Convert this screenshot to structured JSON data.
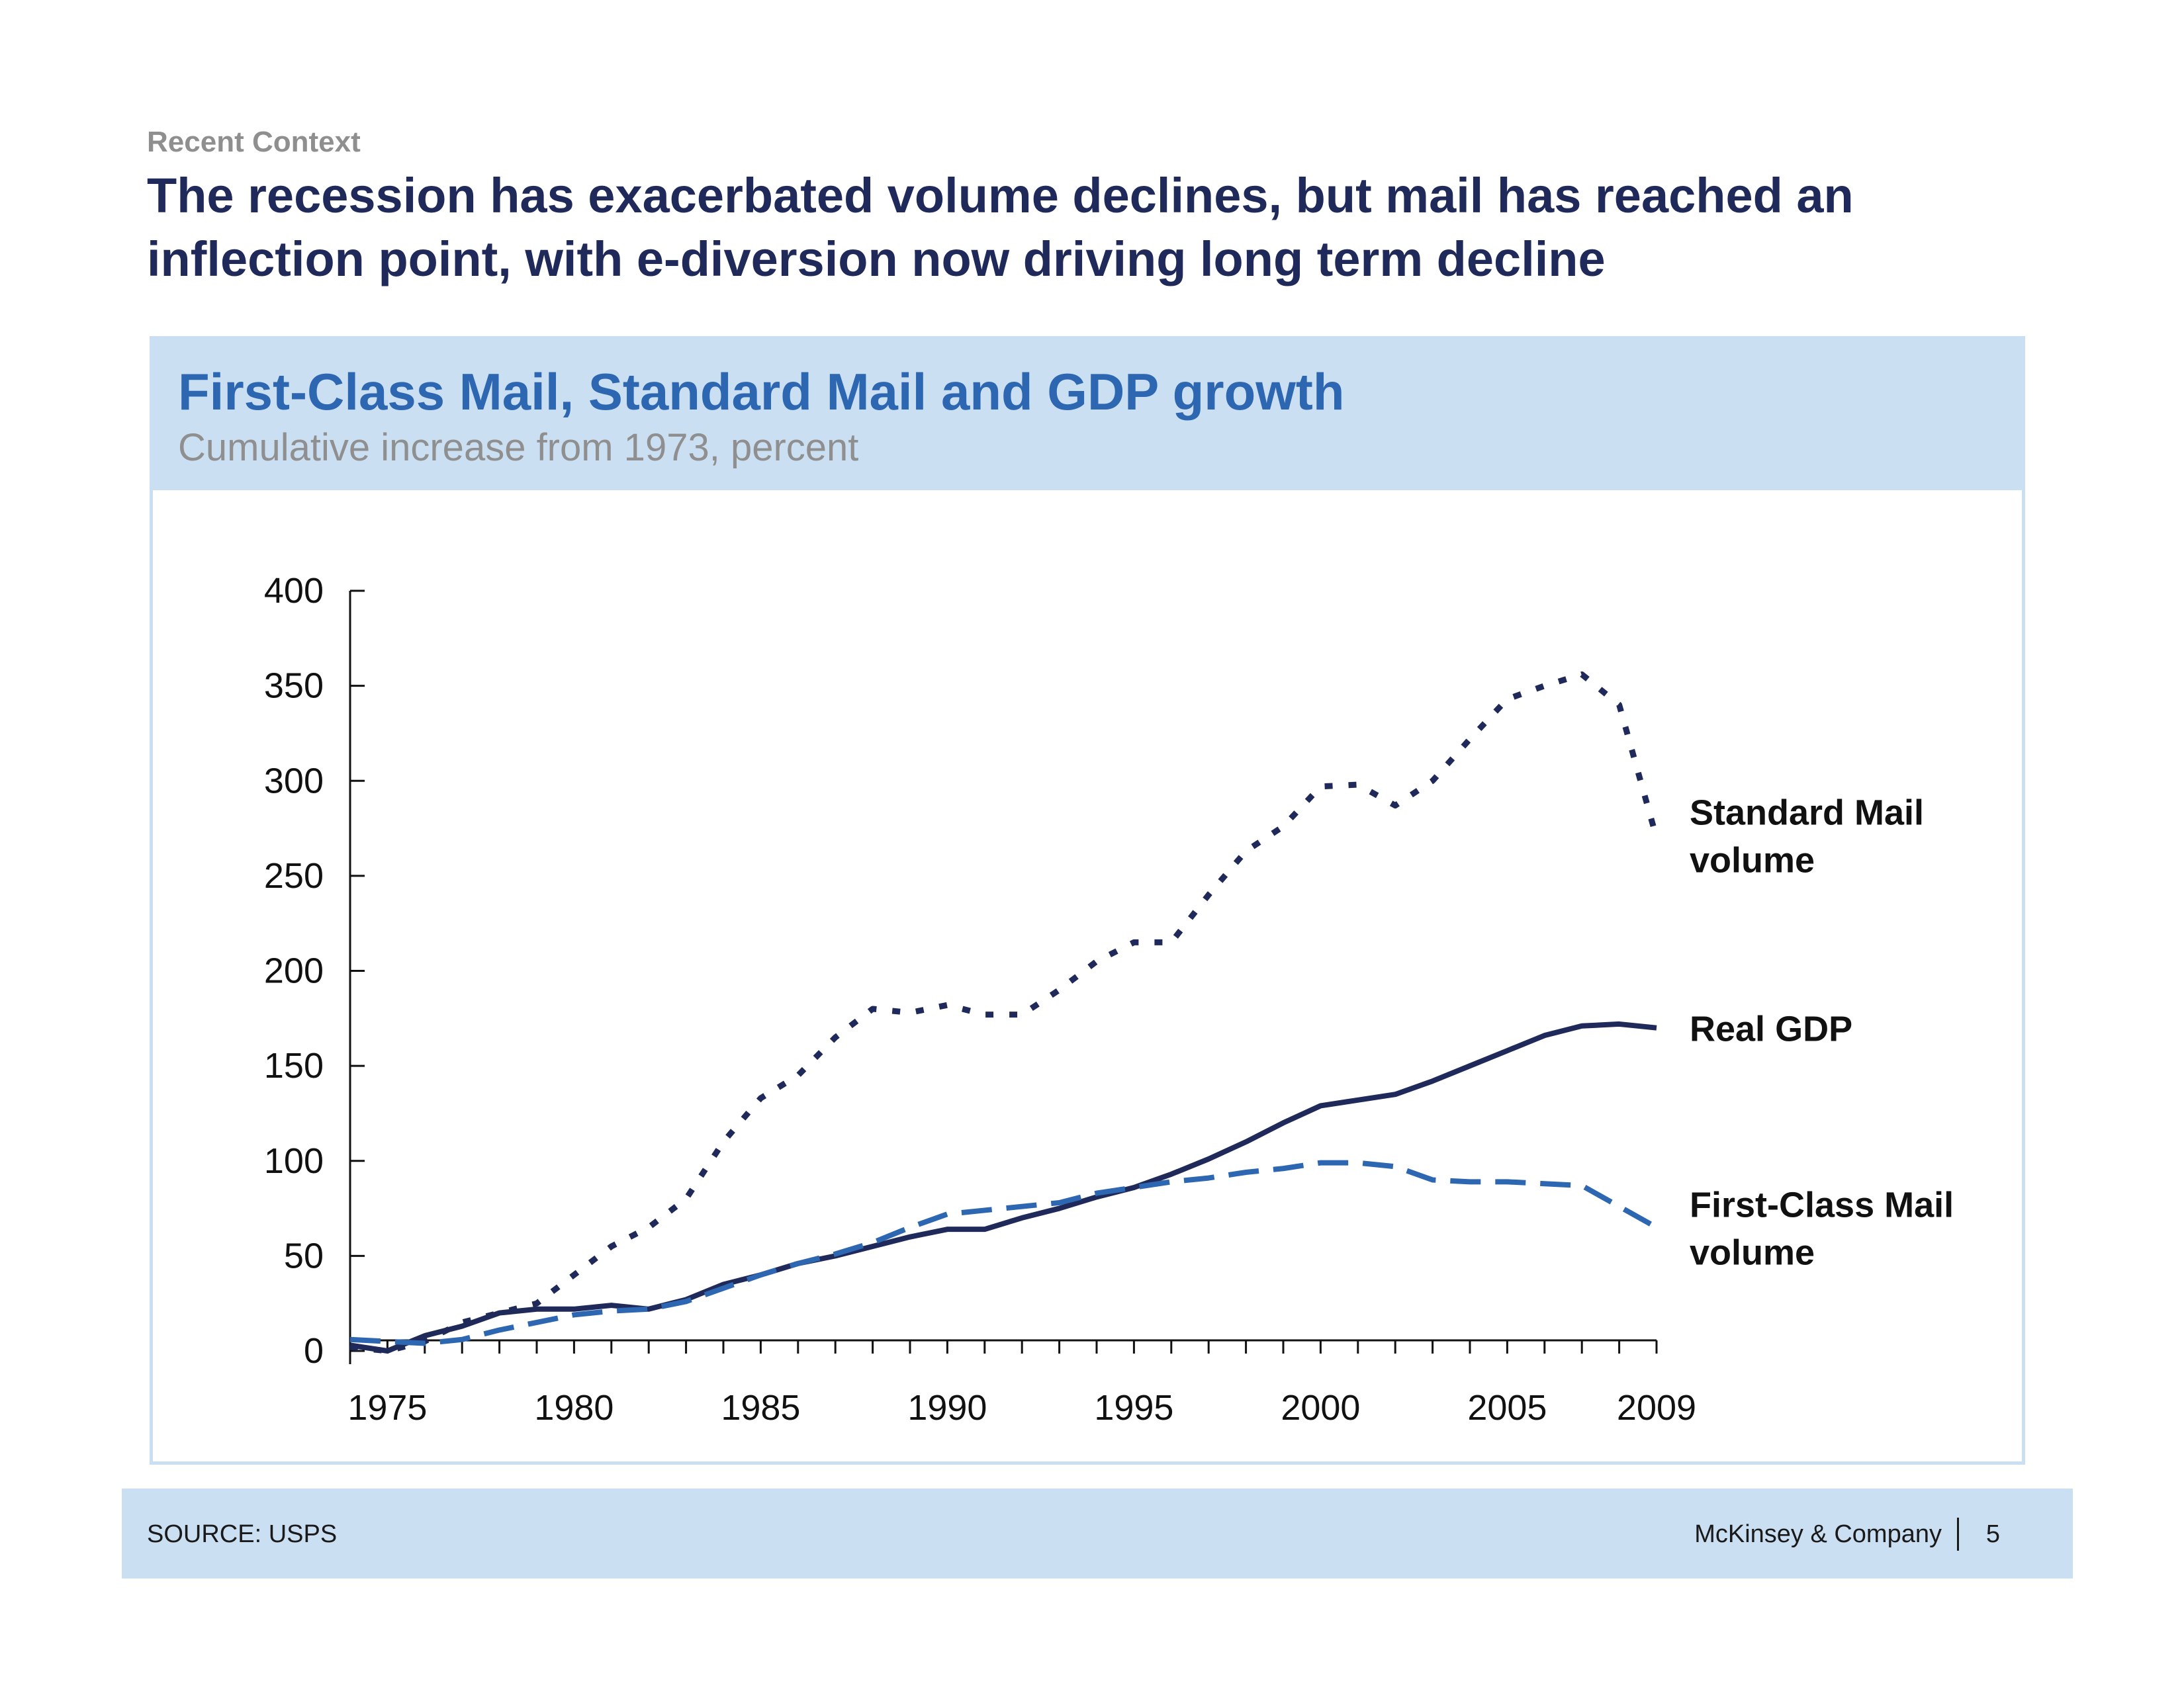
{
  "slide": {
    "kicker": "Recent Context",
    "headline": "The recession has exacerbated volume declines, but mail has reached an inflection point, with e-diversion now driving long term decline"
  },
  "panel": {
    "title": "First-Class Mail, Standard Mail and GDP growth",
    "subtitle": "Cumulative increase from 1973, percent"
  },
  "footer": {
    "source": "SOURCE: USPS",
    "company": "McKinsey & Company",
    "page_number": "5"
  },
  "colors": {
    "standard_mail": "#1f2a5a",
    "real_gdp": "#1f2a5a",
    "first_class_mail": "#2e67b1",
    "panel_header": "#cbdff2"
  },
  "chart_data": {
    "type": "line",
    "title": "First-Class Mail, Standard Mail and GDP growth",
    "subtitle": "Cumulative increase from 1973, percent",
    "xlabel": "",
    "ylabel": "",
    "ylim": [
      0,
      400
    ],
    "xlim": [
      1974,
      2009
    ],
    "yticks": [
      0,
      50,
      100,
      150,
      200,
      250,
      300,
      350,
      400
    ],
    "xtick_labels": [
      "1975",
      "1980",
      "1985",
      "1990",
      "1995",
      "2000",
      "2005",
      "2009"
    ],
    "grid": false,
    "x": [
      1974,
      1975,
      1976,
      1977,
      1978,
      1979,
      1980,
      1981,
      1982,
      1983,
      1984,
      1985,
      1986,
      1987,
      1988,
      1989,
      1990,
      1991,
      1992,
      1993,
      1994,
      1995,
      1996,
      1997,
      1998,
      1999,
      2000,
      2001,
      2002,
      2003,
      2004,
      2005,
      2006,
      2007,
      2008,
      2009
    ],
    "series": [
      {
        "name": "Standard Mail volume",
        "line_style": "dotted",
        "values": [
          2,
          0,
          5,
          15,
          20,
          25,
          40,
          55,
          65,
          80,
          110,
          133,
          145,
          165,
          180,
          178,
          182,
          177,
          177,
          190,
          205,
          215,
          215,
          240,
          263,
          276,
          297,
          298,
          287,
          300,
          322,
          343,
          350,
          356,
          340,
          270
        ]
      },
      {
        "name": "Real GDP",
        "line_style": "solid",
        "values": [
          3,
          0,
          8,
          13,
          20,
          22,
          22,
          24,
          22,
          27,
          35,
          40,
          46,
          50,
          55,
          60,
          64,
          64,
          70,
          75,
          81,
          86,
          93,
          101,
          110,
          120,
          129,
          132,
          135,
          142,
          150,
          158,
          166,
          171,
          172,
          170
        ]
      },
      {
        "name": "First-Class Mail volume",
        "line_style": "dashed",
        "values": [
          6,
          5,
          4,
          6,
          11,
          15,
          19,
          21,
          22,
          26,
          33,
          40,
          46,
          51,
          57,
          65,
          72,
          74,
          76,
          78,
          83,
          86,
          89,
          91,
          94,
          96,
          99,
          99,
          97,
          90,
          89,
          89,
          88,
          87,
          76,
          65
        ]
      }
    ]
  }
}
